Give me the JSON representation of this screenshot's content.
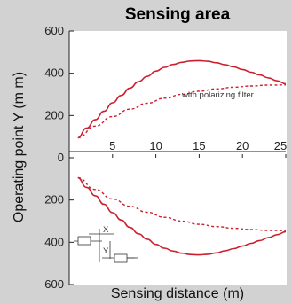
{
  "chart_data": {
    "type": "line",
    "title": "Sensing area",
    "xlabel": "Sensing distance (m)",
    "ylabel": "Operating point Y (m m)",
    "xlim": [
      0,
      25
    ],
    "ylim": [
      -600,
      600
    ],
    "x_ticks": [
      "5",
      "10",
      "15",
      "20",
      "25"
    ],
    "y_ticks": [
      {
        "value": 600,
        "label": "600"
      },
      {
        "value": 400,
        "label": "400"
      },
      {
        "value": 200,
        "label": "200"
      },
      {
        "value": 0,
        "label": "0"
      },
      {
        "value": -200,
        "label": "200"
      },
      {
        "value": -400,
        "label": "400"
      },
      {
        "value": -600,
        "label": "600"
      }
    ],
    "grid": false,
    "annotation": "with polarizing filter",
    "inset_labels": {
      "x": "X",
      "y": "Y"
    },
    "series": [
      {
        "style": "solid",
        "color": "#cc1f2e",
        "sign": 1,
        "x": [
          1,
          2,
          3,
          4,
          5,
          6,
          7,
          8,
          9,
          10,
          11,
          12,
          13,
          14,
          15,
          16,
          17,
          18,
          19,
          20,
          21,
          22,
          23,
          24,
          25
        ],
        "y": [
          95,
          140,
          180,
          220,
          260,
          295,
          330,
          360,
          385,
          410,
          428,
          442,
          452,
          458,
          460,
          457,
          450,
          440,
          430,
          418,
          405,
          392,
          378,
          364,
          350
        ]
      },
      {
        "style": "solid",
        "color": "#cc1f2e",
        "sign": -1,
        "x": [
          1,
          2,
          3,
          4,
          5,
          6,
          7,
          8,
          9,
          10,
          11,
          12,
          13,
          14,
          15,
          16,
          17,
          18,
          19,
          20,
          21,
          22,
          23,
          24,
          25
        ],
        "y": [
          -95,
          -140,
          -180,
          -220,
          -260,
          -295,
          -330,
          -360,
          -385,
          -410,
          -428,
          -442,
          -452,
          -458,
          -460,
          -457,
          -450,
          -440,
          -430,
          -418,
          -405,
          -392,
          -378,
          -364,
          -350
        ]
      },
      {
        "style": "dashed",
        "color": "#cc1f2e",
        "sign": 1,
        "x": [
          1,
          3,
          5,
          7,
          9,
          11,
          13,
          15,
          17,
          19,
          21,
          23,
          25
        ],
        "y": [
          95,
          150,
          195,
          230,
          258,
          282,
          300,
          315,
          326,
          334,
          340,
          344,
          345
        ]
      },
      {
        "style": "dashed",
        "color": "#cc1f2e",
        "sign": -1,
        "x": [
          1,
          3,
          5,
          7,
          9,
          11,
          13,
          15,
          17,
          19,
          21,
          23,
          25
        ],
        "y": [
          -95,
          -150,
          -195,
          -230,
          -258,
          -282,
          -300,
          -315,
          -326,
          -334,
          -340,
          -344,
          -345
        ]
      }
    ]
  }
}
